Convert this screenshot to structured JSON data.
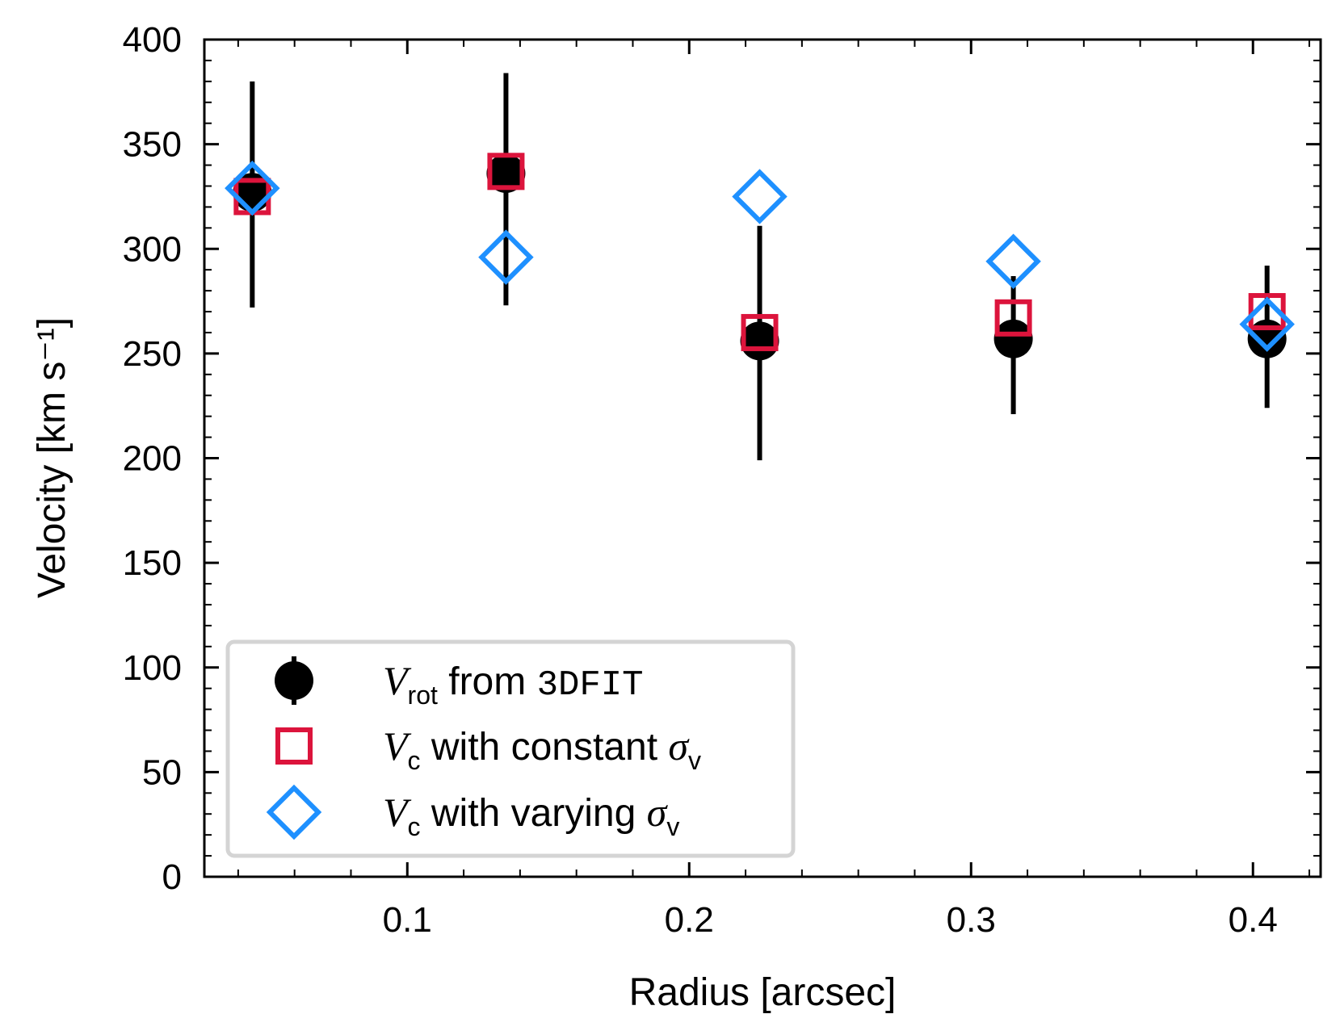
{
  "chart_data": {
    "type": "scatter",
    "xlabel": "Radius [arcsec]",
    "ylabel": "Velocity [km s⁻¹]",
    "xlim": [
      0.028,
      0.424
    ],
    "ylim": [
      0,
      400
    ],
    "xticks": [
      0.1,
      0.2,
      0.3,
      0.4
    ],
    "xtick_labels": [
      "0.1",
      "0.2",
      "0.3",
      "0.4"
    ],
    "yticks": [
      0,
      50,
      100,
      150,
      200,
      250,
      300,
      350,
      400
    ],
    "ytick_labels": [
      "0",
      "50",
      "100",
      "150",
      "200",
      "250",
      "300",
      "350",
      "400"
    ],
    "grid": false,
    "legend_position": "bottom-left",
    "series": [
      {
        "name": "V_rot from 3DFIT",
        "legend": {
          "sym": "V",
          "sub": "rot",
          "rest": " from ",
          "mono": "3DFIT"
        },
        "marker": "circle",
        "color": "#000000",
        "x": [
          0.045,
          0.135,
          0.225,
          0.315,
          0.405
        ],
        "y": [
          327,
          336,
          256,
          257,
          257
        ],
        "err_low": [
          55,
          63,
          57,
          36,
          33
        ],
        "err_high": [
          53,
          48,
          55,
          30,
          35
        ]
      },
      {
        "name": "V_c with constant σ_v",
        "legend": {
          "sym": "V",
          "sub": "c",
          "rest": " with constant ",
          "greek": "σ",
          "greek_sub": "v"
        },
        "marker": "square",
        "color": "#dc143c",
        "x": [
          0.045,
          0.135,
          0.225,
          0.315,
          0.405
        ],
        "y": [
          325,
          337,
          260,
          267,
          270
        ]
      },
      {
        "name": "V_c with varying σ_v",
        "legend": {
          "sym": "V",
          "sub": "c",
          "rest": " with varying ",
          "greek": "σ",
          "greek_sub": "v"
        },
        "marker": "diamond",
        "color": "#1e90ff",
        "x": [
          0.045,
          0.135,
          0.225,
          0.315,
          0.405
        ],
        "y": [
          329,
          296,
          325,
          294,
          264
        ]
      }
    ]
  }
}
